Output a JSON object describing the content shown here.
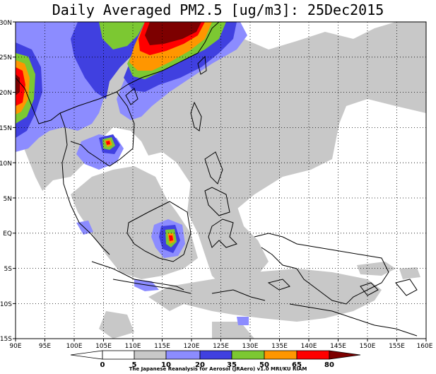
{
  "title": "Daily Averaged PM2.5 [ug/m3]: 25Dec2015",
  "credit": "The Japanese Reanalysis for Aerosol (JRAero) v1.0 MRI/KU RIAM",
  "lon_labels": [
    "90E",
    "95E",
    "100E",
    "105E",
    "110E",
    "115E",
    "120E",
    "125E",
    "130E",
    "135E",
    "140E",
    "145E",
    "150E",
    "155E",
    "160E"
  ],
  "lat_labels": [
    "30N",
    "25N",
    "20N",
    "15N",
    "10N",
    "5N",
    "EQ",
    "5S",
    "10S",
    "15S"
  ],
  "map": {
    "lon_range": [
      90,
      160
    ],
    "lat_range": [
      -15,
      30
    ],
    "grid": "dotted"
  },
  "colorbar": {
    "levels": [
      "0",
      "5",
      "10",
      "20",
      "35",
      "50",
      "65",
      "80"
    ],
    "colors": [
      "#ffffff",
      "#ffffff",
      "#c8c8c8",
      "#8c8cff",
      "#4040e0",
      "#7cc832",
      "#ff9600",
      "#ff0000",
      "#7d0000"
    ]
  }
}
